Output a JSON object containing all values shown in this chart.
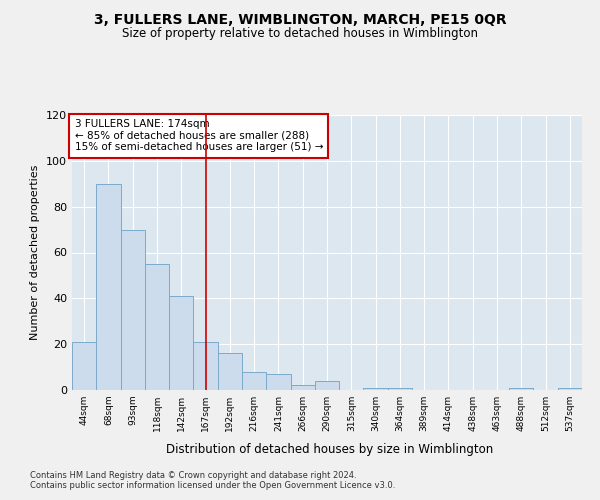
{
  "title": "3, FULLERS LANE, WIMBLINGTON, MARCH, PE15 0QR",
  "subtitle": "Size of property relative to detached houses in Wimblington",
  "xlabel": "Distribution of detached houses by size in Wimblington",
  "ylabel": "Number of detached properties",
  "categories": [
    "44sqm",
    "68sqm",
    "93sqm",
    "118sqm",
    "142sqm",
    "167sqm",
    "192sqm",
    "216sqm",
    "241sqm",
    "266sqm",
    "290sqm",
    "315sqm",
    "340sqm",
    "364sqm",
    "389sqm",
    "414sqm",
    "438sqm",
    "463sqm",
    "488sqm",
    "512sqm",
    "537sqm"
  ],
  "values": [
    21,
    90,
    70,
    55,
    41,
    21,
    16,
    8,
    7,
    2,
    4,
    0,
    1,
    1,
    0,
    0,
    0,
    0,
    1,
    0,
    1
  ],
  "bar_color": "#ccdcec",
  "bar_edge_color": "#7aaaca",
  "vline_x_index": 5,
  "vline_color": "#cc0000",
  "annotation_text": "3 FULLERS LANE: 174sqm\n← 85% of detached houses are smaller (288)\n15% of semi-detached houses are larger (51) →",
  "annotation_box_color": "#ffffff",
  "annotation_box_edge_color": "#cc0000",
  "ylim": [
    0,
    120
  ],
  "yticks": [
    0,
    20,
    40,
    60,
    80,
    100,
    120
  ],
  "bg_color": "#dde7f0",
  "grid_color": "#ffffff",
  "fig_bg_color": "#f0f0f0",
  "footer_line1": "Contains HM Land Registry data © Crown copyright and database right 2024.",
  "footer_line2": "Contains public sector information licensed under the Open Government Licence v3.0."
}
